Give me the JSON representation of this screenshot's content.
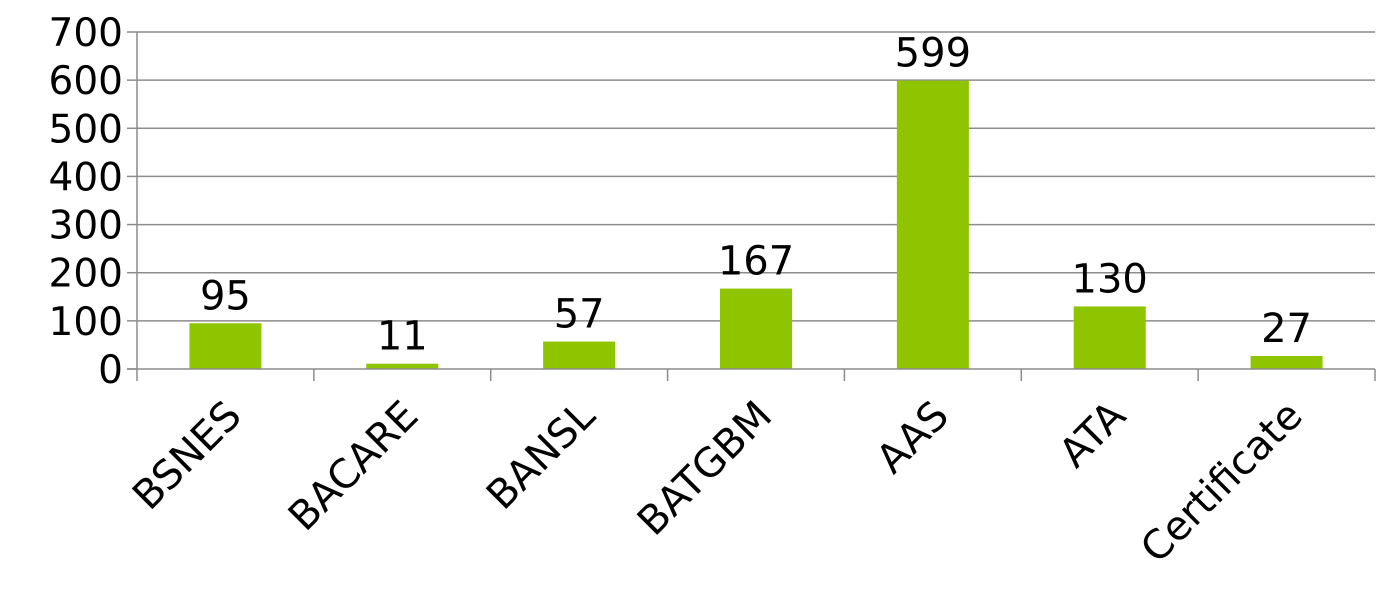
{
  "chart_data": {
    "type": "bar",
    "categories": [
      "BSNES",
      "BACARE",
      "BANSL",
      "BATGBM",
      "AAS",
      "ATA",
      "Certificate"
    ],
    "values": [
      95,
      11,
      57,
      167,
      599,
      130,
      27
    ],
    "title": "",
    "xlabel": "",
    "ylabel": "",
    "ylim": [
      0,
      700
    ],
    "yticks": [
      0,
      100,
      200,
      300,
      400,
      500,
      600,
      700
    ],
    "grid": true,
    "legend": "none",
    "data_labels": true,
    "colors": {
      "bar": "#8fc400",
      "grid": "#8c8c8c",
      "axis": "#8c8c8c",
      "text": "#000000"
    }
  }
}
